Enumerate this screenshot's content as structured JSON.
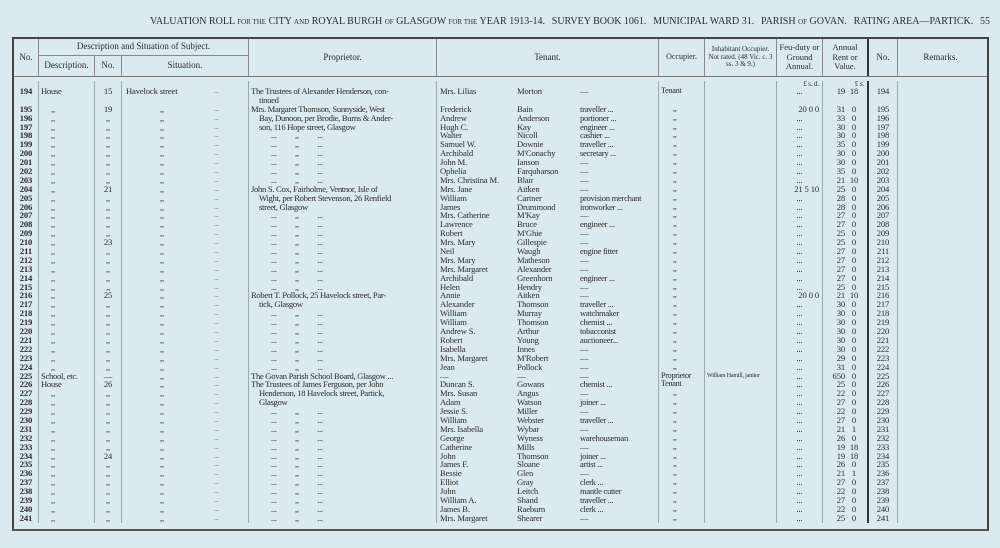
{
  "title": {
    "left": "VALUATION ROLL",
    "for_the": "FOR THE",
    "city": "CITY",
    "and": "AND",
    "royal_burgh": "ROYAL BURGH",
    "of": "OF",
    "glasgow": "GLASGOW",
    "for_the2": "FOR THE",
    "year": "YEAR 1913-14.",
    "survey": "SURVEY BOOK 1061.",
    "ward": "MUNICIPAL WARD 31.",
    "parish": "PARISH",
    "of2": "OF",
    "govan": "GOVAN.",
    "rating": "RATING AREA—PARTICK.",
    "page": "55"
  },
  "headers": {
    "no": "No.",
    "desc_sit": "Description and Situation of Subject.",
    "description": "Description.",
    "sub_no": "No.",
    "situation": "Situation.",
    "proprietor": "Proprietor.",
    "tenant": "Tenant.",
    "occupier": "Occupier.",
    "inhabitant": "Inhabitant Occupier. Not rated. (48 Vic. c. 3 ss. 3 & 9.)",
    "feu": "Feu-duty or Ground Annual.",
    "rent": "Annual Rent or Value.",
    "no2": "No.",
    "remarks": "Remarks.",
    "feu_units": "£  s.  d.",
    "rent_units": "£   s."
  },
  "dots": "...",
  "rows": [
    {
      "no": "194",
      "desc": "House",
      "num": "15",
      "sit": "Havelock street",
      "prop": "The Trustees of Alexander Henderson, con-",
      "first": "Mrs. Lilias",
      "last": "Morton",
      "occ": "—",
      "occupier": "Tenant",
      "inhab": "",
      "feu": "...",
      "rent_l": "19",
      "rent_s": "18"
    },
    {
      "no": "",
      "desc": "",
      "num": "",
      "sit": "",
      "prop": "tinued",
      "first": "",
      "last": "",
      "occ": "",
      "occupier": "",
      "inhab": "",
      "feu": "",
      "rent_l": "",
      "rent_s": "",
      "cont": true
    },
    {
      "no": "195",
      "desc": ",,",
      "num": "19",
      "sit": ",,",
      "prop": "Mrs. Margaret Thomson, Sunnyside, West",
      "first": "Frederick",
      "last": "Bain",
      "occ": "traveller ...",
      "occupier": ",,",
      "inhab": "",
      "feu": "20  0  0",
      "rent_l": "31",
      "rent_s": "0"
    },
    {
      "no": "196",
      "desc": ",,",
      "num": ",,",
      "sit": ",,",
      "prop": "Bay, Dunoon, per Brodie, Burns & Ander-",
      "first": "Andrew",
      "last": "Anderson",
      "occ": "portioner ...",
      "occupier": ",,",
      "inhab": "",
      "feu": "...",
      "rent_l": "33",
      "rent_s": "0"
    },
    {
      "no": "197",
      "desc": ",,",
      "num": ",,",
      "sit": ",,",
      "prop": "son, 116 Hope street, Glasgow",
      "first": "Hugh C.",
      "last": "Kay",
      "occ": "engineer ...",
      "occupier": ",,",
      "inhab": "",
      "feu": "...",
      "rent_l": "30",
      "rent_s": "0"
    },
    {
      "no": "198",
      "desc": ",,",
      "num": ",,",
      "sit": ",,",
      "prop": "...          ,,          ...",
      "first": "Walter",
      "last": "Nicoll",
      "occ": "cashier ...",
      "occupier": ",,",
      "inhab": "",
      "feu": "...",
      "rent_l": "30",
      "rent_s": "0"
    },
    {
      "no": "199",
      "desc": ",,",
      "num": ",,",
      "sit": ",,",
      "prop": "...          ,,          ...",
      "first": "Samuel W.",
      "last": "Downie",
      "occ": "traveller ...",
      "occupier": ",,",
      "inhab": "",
      "feu": "...",
      "rent_l": "35",
      "rent_s": "0"
    },
    {
      "no": "200",
      "desc": ",,",
      "num": ",,",
      "sit": ",,",
      "prop": "...          ,,          ...",
      "first": "Archibald",
      "last": "M'Conachy",
      "occ": "secretary ...",
      "occupier": ",,",
      "inhab": "",
      "feu": "...",
      "rent_l": "30",
      "rent_s": "0"
    },
    {
      "no": "201",
      "desc": ",,",
      "num": ",,",
      "sit": ",,",
      "prop": "...          ,,          ...",
      "first": "John M.",
      "last": "Ianson",
      "occ": "—",
      "occupier": ",,",
      "inhab": "",
      "feu": "...",
      "rent_l": "30",
      "rent_s": "0"
    },
    {
      "no": "202",
      "desc": ",,",
      "num": ",,",
      "sit": ",,",
      "prop": "...          ,,          ...",
      "first": "Ophelia",
      "last": "Farquharson",
      "occ": "—",
      "occupier": ",,",
      "inhab": "",
      "feu": "...",
      "rent_l": "35",
      "rent_s": "0"
    },
    {
      "no": "203",
      "desc": ",,",
      "num": ",,",
      "sit": ",,",
      "prop": "...          ,,          ...",
      "first": "Mrs. Christina M.",
      "last": "Blair",
      "occ": "—",
      "occupier": ",,",
      "inhab": "",
      "feu": "...",
      "rent_l": "21",
      "rent_s": "10"
    },
    {
      "no": "204",
      "desc": ",,",
      "num": "21",
      "sit": ",,",
      "prop": "John S. Cox, Fairholme, Ventnor, Isle of",
      "first": "Mrs. Jane",
      "last": "Aitken",
      "occ": "—",
      "occupier": ",,",
      "inhab": "",
      "feu": "21  5 10",
      "rent_l": "25",
      "rent_s": "0"
    },
    {
      "no": "205",
      "desc": ",,",
      "num": ",,",
      "sit": ",,",
      "prop": "Wight, per Robert Stevenson, 26 Renfield",
      "first": "William",
      "last": "Cartner",
      "occ": "provision merchant",
      "occupier": ",,",
      "inhab": "",
      "feu": "...",
      "rent_l": "28",
      "rent_s": "0"
    },
    {
      "no": "206",
      "desc": ",,",
      "num": ",,",
      "sit": ",,",
      "prop": "street, Glasgow",
      "first": "James",
      "last": "Drummond",
      "occ": "ironworker ...",
      "occupier": ",,",
      "inhab": "",
      "feu": "...",
      "rent_l": "28",
      "rent_s": "0"
    },
    {
      "no": "207",
      "desc": ",,",
      "num": ",,",
      "sit": ",,",
      "prop": "...          ,,          ...",
      "first": "Mrs. Catherine",
      "last": "M'Kay",
      "occ": "—",
      "occupier": ",,",
      "inhab": "",
      "feu": "...",
      "rent_l": "27",
      "rent_s": "0"
    },
    {
      "no": "208",
      "desc": ",,",
      "num": ",,",
      "sit": ",,",
      "prop": "...          ,,          ...",
      "first": "Lawrence",
      "last": "Bruce",
      "occ": "engineer ...",
      "occupier": ",,",
      "inhab": "",
      "feu": "...",
      "rent_l": "27",
      "rent_s": "0"
    },
    {
      "no": "209",
      "desc": ",,",
      "num": ",,",
      "sit": ",,",
      "prop": "...          ,,          ...",
      "first": "Robert",
      "last": "M'Ghie",
      "occ": "—",
      "occupier": ",,",
      "inhab": "",
      "feu": "...",
      "rent_l": "25",
      "rent_s": "0"
    },
    {
      "no": "210",
      "desc": ",,",
      "num": "23",
      "sit": ",,",
      "prop": "...          ,,          ...",
      "first": "Mrs. Mary",
      "last": "Gillespie",
      "occ": "—",
      "occupier": ",,",
      "inhab": "",
      "feu": "...",
      "rent_l": "25",
      "rent_s": "0"
    },
    {
      "no": "211",
      "desc": ",,",
      "num": ",,",
      "sit": ",,",
      "prop": "...          ,,          ...",
      "first": "Neil",
      "last": "Waugh",
      "occ": "engine fitter",
      "occupier": ",,",
      "inhab": "",
      "feu": "...",
      "rent_l": "27",
      "rent_s": "0"
    },
    {
      "no": "212",
      "desc": ",,",
      "num": ",,",
      "sit": ",,",
      "prop": "...          ,,          ...",
      "first": "Mrs. Mary",
      "last": "Matheson",
      "occ": "—",
      "occupier": ",,",
      "inhab": "",
      "feu": "...",
      "rent_l": "27",
      "rent_s": "0"
    },
    {
      "no": "213",
      "desc": ",,",
      "num": ",,",
      "sit": ",,",
      "prop": "...          ,,          ...",
      "first": "Mrs. Margaret",
      "last": "Alexander",
      "occ": "—",
      "occupier": ",,",
      "inhab": "",
      "feu": "...",
      "rent_l": "27",
      "rent_s": "0"
    },
    {
      "no": "214",
      "desc": ",,",
      "num": ",,",
      "sit": ",,",
      "prop": "...          ,,          ...",
      "first": "Archibald",
      "last": "Greenhorn",
      "occ": "engineer ...",
      "occupier": ",,",
      "inhab": "",
      "feu": "...",
      "rent_l": "27",
      "rent_s": "0"
    },
    {
      "no": "215",
      "desc": ",,",
      "num": ",,",
      "sit": ",,",
      "prop": "...          ,,          ...",
      "first": "Helen",
      "last": "Hendry",
      "occ": "—",
      "occupier": ",,",
      "inhab": "",
      "feu": "...",
      "rent_l": "25",
      "rent_s": "0"
    },
    {
      "no": "216",
      "desc": ",,",
      "num": "25",
      "sit": ",,",
      "prop": "Robert T. Pollock, 25 Havelock street, Par-",
      "first": "Annie",
      "last": "Aitken",
      "occ": "—",
      "occupier": ",,",
      "inhab": "",
      "feu": "20  0  0",
      "rent_l": "21",
      "rent_s": "10"
    },
    {
      "no": "217",
      "desc": ",,",
      "num": ",,",
      "sit": ",,",
      "prop": "tick, Glasgow",
      "first": "Alexander",
      "last": "Thomson",
      "occ": "traveller ...",
      "occupier": ",,",
      "inhab": "",
      "feu": "...",
      "rent_l": "30",
      "rent_s": "0"
    },
    {
      "no": "218",
      "desc": ",,",
      "num": ",,",
      "sit": ",,",
      "prop": "...          ,,          ...",
      "first": "William",
      "last": "Murray",
      "occ": "watchmaker",
      "occupier": ",,",
      "inhab": "",
      "feu": "...",
      "rent_l": "30",
      "rent_s": "0"
    },
    {
      "no": "219",
      "desc": ",,",
      "num": ",,",
      "sit": ",,",
      "prop": "...          ,,          ...",
      "first": "William",
      "last": "Thomson",
      "occ": "chemist ...",
      "occupier": ",,",
      "inhab": "",
      "feu": "...",
      "rent_l": "30",
      "rent_s": "0"
    },
    {
      "no": "220",
      "desc": ",,",
      "num": ",,",
      "sit": ",,",
      "prop": "...          ,,          ...",
      "first": "Andrew S.",
      "last": "Arthur",
      "occ": "tobacconist",
      "occupier": ",,",
      "inhab": "",
      "feu": "...",
      "rent_l": "30",
      "rent_s": "0"
    },
    {
      "no": "221",
      "desc": ",,",
      "num": ",,",
      "sit": ",,",
      "prop": "...          ,,          ...",
      "first": "Robert",
      "last": "Young",
      "occ": "auctioneer...",
      "occupier": ",,",
      "inhab": "",
      "feu": "...",
      "rent_l": "30",
      "rent_s": "0"
    },
    {
      "no": "222",
      "desc": ",,",
      "num": ",,",
      "sit": ",,",
      "prop": "...          ,,          ...",
      "first": "Isabella",
      "last": "Innes",
      "occ": "—",
      "occupier": ",,",
      "inhab": "",
      "feu": "...",
      "rent_l": "30",
      "rent_s": "0"
    },
    {
      "no": "223",
      "desc": ",,",
      "num": ",,",
      "sit": ",,",
      "prop": "...          ,,          ...",
      "first": "Mrs. Margaret",
      "last": "M'Robert",
      "occ": "—",
      "occupier": ",,",
      "inhab": "",
      "feu": "...",
      "rent_l": "29",
      "rent_s": "0"
    },
    {
      "no": "224",
      "desc": ",,",
      "num": ",,",
      "sit": ",,",
      "prop": "...          ,,          ...",
      "first": "Jean",
      "last": "Pollock",
      "occ": "—",
      "occupier": ",,",
      "inhab": "",
      "feu": "...",
      "rent_l": "31",
      "rent_s": "0"
    },
    {
      "no": "225",
      "desc": "School, etc.",
      "num": "—",
      "sit": ",,",
      "prop": "The Govan Parish School Board, Glasgow ...",
      "first": "—",
      "last": "—",
      "occ": "—",
      "occupier": "Proprietor",
      "inhab": "William Hamill, janitor",
      "feu": "...",
      "rent_l": "650",
      "rent_s": "0"
    },
    {
      "no": "226",
      "desc": "House",
      "num": "26",
      "sit": ",,",
      "prop": "The Trustees of James Ferguson, per John",
      "first": "Duncan S.",
      "last": "Gowans",
      "occ": "chemist ...",
      "occupier": "Tenant",
      "inhab": "",
      "feu": "...",
      "rent_l": "25",
      "rent_s": "0"
    },
    {
      "no": "227",
      "desc": ",,",
      "num": ",,",
      "sit": ",,",
      "prop": "Henderson, 18 Havelock street, Partick,",
      "first": "Mrs. Susan",
      "last": "Angus",
      "occ": "—",
      "occupier": ",,",
      "inhab": "",
      "feu": "...",
      "rent_l": "22",
      "rent_s": "0"
    },
    {
      "no": "228",
      "desc": ",,",
      "num": ",,",
      "sit": ",,",
      "prop": "Glasgow",
      "first": "Adam",
      "last": "Watson",
      "occ": "joiner ...",
      "occupier": ",,",
      "inhab": "",
      "feu": "...",
      "rent_l": "27",
      "rent_s": "0"
    },
    {
      "no": "229",
      "desc": ",,",
      "num": ",,",
      "sit": ",,",
      "prop": "...          ,,          ...",
      "first": "Jessie S.",
      "last": "Miller",
      "occ": "—",
      "occupier": ",,",
      "inhab": "",
      "feu": "...",
      "rent_l": "22",
      "rent_s": "0"
    },
    {
      "no": "230",
      "desc": ",,",
      "num": ",,",
      "sit": ",,",
      "prop": "...          ,,          ...",
      "first": "William",
      "last": "Webster",
      "occ": "traveller ...",
      "occupier": ",,",
      "inhab": "",
      "feu": "...",
      "rent_l": "27",
      "rent_s": "0"
    },
    {
      "no": "231",
      "desc": ",,",
      "num": ",,",
      "sit": ",,",
      "prop": "...          ,,          ...",
      "first": "Mrs. Isabella",
      "last": "Wybar",
      "occ": "—",
      "occupier": ",,",
      "inhab": "",
      "feu": "...",
      "rent_l": "21",
      "rent_s": "1"
    },
    {
      "no": "232",
      "desc": ",,",
      "num": ",,",
      "sit": ",,",
      "prop": "...          ,,          ...",
      "first": "George",
      "last": "Wyness",
      "occ": "warehouseman",
      "occupier": ",,",
      "inhab": "",
      "feu": "...",
      "rent_l": "26",
      "rent_s": "0"
    },
    {
      "no": "233",
      "desc": ",,",
      "num": ",,",
      "sit": ",,",
      "prop": "...          ,,          ...",
      "first": "Catherine",
      "last": "Mills",
      "occ": "—",
      "occupier": ",,",
      "inhab": "",
      "feu": "...",
      "rent_l": "19",
      "rent_s": "18"
    },
    {
      "no": "234",
      "desc": ",,",
      "num": "24",
      "sit": ",,",
      "prop": "...          ,,          ...",
      "first": "John",
      "last": "Thomson",
      "occ": "joiner ...",
      "occupier": ",,",
      "inhab": "",
      "feu": "...",
      "rent_l": "19",
      "rent_s": "18"
    },
    {
      "no": "235",
      "desc": ",,",
      "num": ",,",
      "sit": ",,",
      "prop": "...          ,,          ...",
      "first": "James F.",
      "last": "Sloane",
      "occ": "artist ...",
      "occupier": ",,",
      "inhab": "",
      "feu": "...",
      "rent_l": "26",
      "rent_s": "0"
    },
    {
      "no": "236",
      "desc": ",,",
      "num": ",,",
      "sit": ",,",
      "prop": "...          ,,          ...",
      "first": "Bessie",
      "last": "Glen",
      "occ": "—",
      "occupier": ",,",
      "inhab": "",
      "feu": "...",
      "rent_l": "21",
      "rent_s": "1"
    },
    {
      "no": "237",
      "desc": ",,",
      "num": ",,",
      "sit": ",,",
      "prop": "...          ,,          ...",
      "first": "Elliot",
      "last": "Gray",
      "occ": "clerk ...",
      "occupier": ",,",
      "inhab": "",
      "feu": "...",
      "rent_l": "27",
      "rent_s": "0"
    },
    {
      "no": "238",
      "desc": ",,",
      "num": ",,",
      "sit": ",,",
      "prop": "...          ,,          ...",
      "first": "John",
      "last": "Leitch",
      "occ": "mantle cutter",
      "occupier": ",,",
      "inhab": "",
      "feu": "...",
      "rent_l": "22",
      "rent_s": "0"
    },
    {
      "no": "239",
      "desc": ",,",
      "num": ",,",
      "sit": ",,",
      "prop": "...          ,,          ...",
      "first": "William A.",
      "last": "Shand",
      "occ": "traveller ...",
      "occupier": ",,",
      "inhab": "",
      "feu": "...",
      "rent_l": "27",
      "rent_s": "0"
    },
    {
      "no": "240",
      "desc": ",,",
      "num": ",,",
      "sit": ",,",
      "prop": "...          ,,          ...",
      "first": "James B.",
      "last": "Raeburn",
      "occ": "clerk ...",
      "occupier": ",,",
      "inhab": "",
      "feu": "...",
      "rent_l": "22",
      "rent_s": "0"
    },
    {
      "no": "241",
      "desc": ",,",
      "num": ",,",
      "sit": ",,",
      "prop": "...          ,,          ...",
      "first": "Mrs. Margaret",
      "last": "Shearer",
      "occ": "—",
      "occupier": ",,",
      "inhab": "",
      "feu": "...",
      "rent_l": "25",
      "rent_s": "0"
    }
  ]
}
